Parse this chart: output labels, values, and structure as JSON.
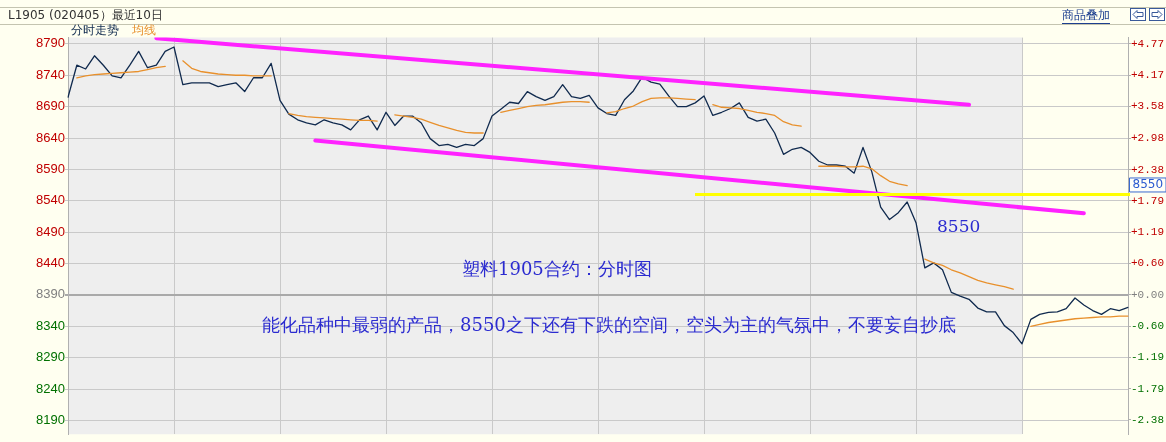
{
  "chart_data": {
    "type": "line",
    "title": "L1905 (020405）最近10日",
    "categories": [
      null,
      null,
      null,
      null,
      null,
      null,
      null,
      null,
      null,
      null,
      null,
      null,
      null,
      null,
      null,
      null,
      null,
      null,
      null,
      null,
      null,
      null,
      null,
      null,
      null,
      null,
      null,
      null,
      null,
      null,
      null,
      null,
      null,
      null,
      null,
      null,
      null,
      null,
      null,
      null,
      null,
      null,
      null,
      null,
      null,
      null,
      null,
      null,
      null,
      null,
      null,
      null,
      null,
      null,
      null,
      null,
      null,
      null,
      null,
      null,
      null,
      null,
      null,
      null,
      null,
      null,
      null,
      null,
      null,
      null,
      null,
      null,
      null,
      null,
      null,
      null,
      null,
      null,
      null,
      null,
      null,
      null,
      null,
      null,
      null,
      null,
      null,
      null,
      null,
      null,
      null,
      null,
      null,
      null,
      null,
      null,
      null,
      null,
      null,
      null,
      null,
      null,
      null,
      null,
      null,
      null,
      null,
      null,
      null,
      null,
      null,
      null,
      null,
      null,
      null,
      null,
      null,
      null,
      null,
      null,
      null
    ],
    "series": [
      {
        "name": "分时走势",
        "color": "#102a4e",
        "values": [
          8705,
          8756,
          8750,
          8771,
          8756,
          8739,
          8736,
          8756,
          8778,
          8752,
          8756,
          8778,
          8785,
          8725,
          8728,
          8728,
          8728,
          8722,
          8725,
          8728,
          8714,
          8736,
          8736,
          8759,
          8700,
          8678,
          8669,
          8664,
          8661,
          8669,
          8664,
          8661,
          8653,
          8669,
          8675,
          8653,
          8681,
          8660,
          8675,
          8675,
          8664,
          8639,
          8628,
          8630,
          8625,
          8630,
          8628,
          8639,
          8675,
          8686,
          8697,
          8695,
          8714,
          8706,
          8700,
          8706,
          8725,
          8706,
          8703,
          8708,
          8688,
          8679,
          8676,
          8701,
          8715,
          8737,
          8729,
          8726,
          8707,
          8690,
          8690,
          8696,
          8707,
          8676,
          8681,
          8687,
          8696,
          8673,
          8667,
          8670,
          8648,
          8614,
          8622,
          8625,
          8617,
          8603,
          8597,
          8597,
          8595,
          8584,
          8625,
          8586,
          8530,
          8510,
          8521,
          8538,
          8505,
          8433,
          8441,
          8430,
          8394,
          8388,
          8383,
          8369,
          8363,
          8363,
          8341,
          8330,
          8312,
          8351,
          8359,
          8362,
          8363,
          8368,
          8385,
          8374,
          8365,
          8359,
          8368,
          8365,
          8370
        ]
      },
      {
        "name": "均线",
        "color": "#e8902c",
        "values": [
          null,
          8736,
          8739,
          8741,
          8742,
          8743,
          8744,
          8745,
          8746,
          8749,
          8752,
          8754,
          null,
          8763,
          8751,
          8746,
          8744,
          8742,
          8741,
          8740,
          8740,
          8739,
          8739,
          8739,
          null,
          8679,
          8676,
          8674,
          8673,
          8672,
          8671,
          8670,
          8669,
          8668,
          8668,
          8667,
          null,
          8677,
          8675,
          8673,
          8670,
          8665,
          8660,
          8656,
          8652,
          8649,
          8648,
          8648,
          null,
          8681,
          8684,
          8687,
          8690,
          8692,
          8693,
          8695,
          8697,
          8698,
          8698,
          8697,
          null,
          8680,
          8682,
          8687,
          8691,
          8698,
          8703,
          8704,
          8704,
          8703,
          8702,
          8701,
          null,
          8693,
          8689,
          8688,
          8687,
          8684,
          8681,
          8679,
          8676,
          8666,
          8661,
          8659,
          null,
          8595,
          8595,
          8595,
          8594,
          8594,
          8595,
          8591,
          8580,
          8571,
          8567,
          8564,
          null,
          8447,
          8441,
          8437,
          8430,
          8425,
          8419,
          8413,
          8409,
          8406,
          8403,
          8399,
          null,
          8340,
          8343,
          8346,
          8348,
          8350,
          8352,
          8353,
          8354,
          8355,
          8355,
          8356,
          8356
        ]
      },
      {
        "color": "#ff22ff",
        "values": [
          null,
          null,
          null,
          null,
          null,
          null,
          null,
          null,
          null,
          null,
          8799,
          null,
          null,
          null,
          null,
          null,
          null,
          null,
          null,
          null,
          null,
          null,
          null,
          null,
          null,
          null,
          null,
          null,
          null,
          null,
          null,
          null,
          null,
          null,
          null,
          null,
          null,
          null,
          null,
          null,
          null,
          null,
          null,
          null,
          null,
          null,
          null,
          null,
          null,
          null,
          null,
          null,
          null,
          null,
          null,
          null,
          null,
          null,
          null,
          null,
          null,
          null,
          null,
          null,
          null,
          null,
          null,
          null,
          null,
          null,
          null,
          null,
          null,
          null,
          null,
          null,
          null,
          null,
          null,
          null,
          null,
          null,
          null,
          null,
          null,
          null,
          null,
          null,
          null,
          null,
          null,
          null,
          null,
          null,
          null,
          null,
          null,
          null,
          null,
          null,
          null,
          null,
          8693,
          null,
          null,
          null,
          null,
          null,
          null,
          null,
          null,
          null,
          null,
          null,
          null,
          null,
          null,
          null,
          null,
          null,
          null
        ]
      },
      {
        "color": "#ff22ff",
        "values": [
          null,
          null,
          null,
          null,
          null,
          null,
          null,
          null,
          null,
          null,
          null,
          null,
          null,
          null,
          null,
          null,
          null,
          null,
          null,
          null,
          null,
          null,
          null,
          null,
          null,
          null,
          null,
          null,
          8636,
          null,
          null,
          null,
          null,
          null,
          null,
          null,
          null,
          null,
          null,
          null,
          null,
          null,
          null,
          null,
          null,
          null,
          null,
          null,
          null,
          null,
          null,
          null,
          null,
          null,
          null,
          null,
          null,
          null,
          null,
          null,
          null,
          null,
          null,
          null,
          null,
          null,
          null,
          null,
          null,
          null,
          null,
          null,
          null,
          null,
          null,
          null,
          null,
          null,
          null,
          null,
          null,
          null,
          null,
          null,
          null,
          null,
          null,
          null,
          null,
          null,
          null,
          null,
          null,
          null,
          null,
          null,
          null,
          null,
          null,
          null,
          null,
          null,
          null,
          null,
          null,
          null,
          null,
          null,
          null,
          null,
          null,
          null,
          null,
          null,
          null,
          8520,
          null,
          null,
          null,
          null,
          null
        ]
      }
    ],
    "ylim": [
      8168,
      8800
    ],
    "yticks": [
      8190,
      8240,
      8290,
      8340,
      8390,
      8440,
      8490,
      8540,
      8590,
      8640,
      8690,
      8740,
      8790
    ],
    "y2lim": [
      -2.65,
      4.89
    ],
    "y2ticks": [
      {
        "value": -2.38,
        "label": "-2.38"
      },
      {
        "value": -1.79,
        "label": "-1.79"
      },
      {
        "value": -1.19,
        "label": "-1.19"
      },
      {
        "value": -0.6,
        "label": "-0.60"
      },
      {
        "value": 0,
        "label": "+0.00"
      },
      {
        "value": 0.6,
        "label": "+0.60"
      },
      {
        "value": 1.19,
        "label": "+1.19"
      },
      {
        "value": 1.79,
        "label": "+1.79"
      },
      {
        "value": 2.38,
        "label": "+2.38"
      },
      {
        "value": 2.98,
        "label": "+2.98"
      },
      {
        "value": 3.58,
        "label": "+3.58"
      },
      {
        "value": 4.17,
        "label": "+4.17"
      },
      {
        "value": 4.77,
        "label": "+4.77"
      }
    ],
    "ref_lines": [
      {
        "axis": "y",
        "value": 8550,
        "label": "8550",
        "color": "#ffff00"
      }
    ],
    "annotations": [
      "塑料1905合约：分时图",
      "能化品种中最弱的产品，8550之下还有下跌的空间，空头为主的气氛中，不要妄自抄底",
      "8550",
      "商品叠加"
    ],
    "grid": true,
    "legend": "top left"
  }
}
